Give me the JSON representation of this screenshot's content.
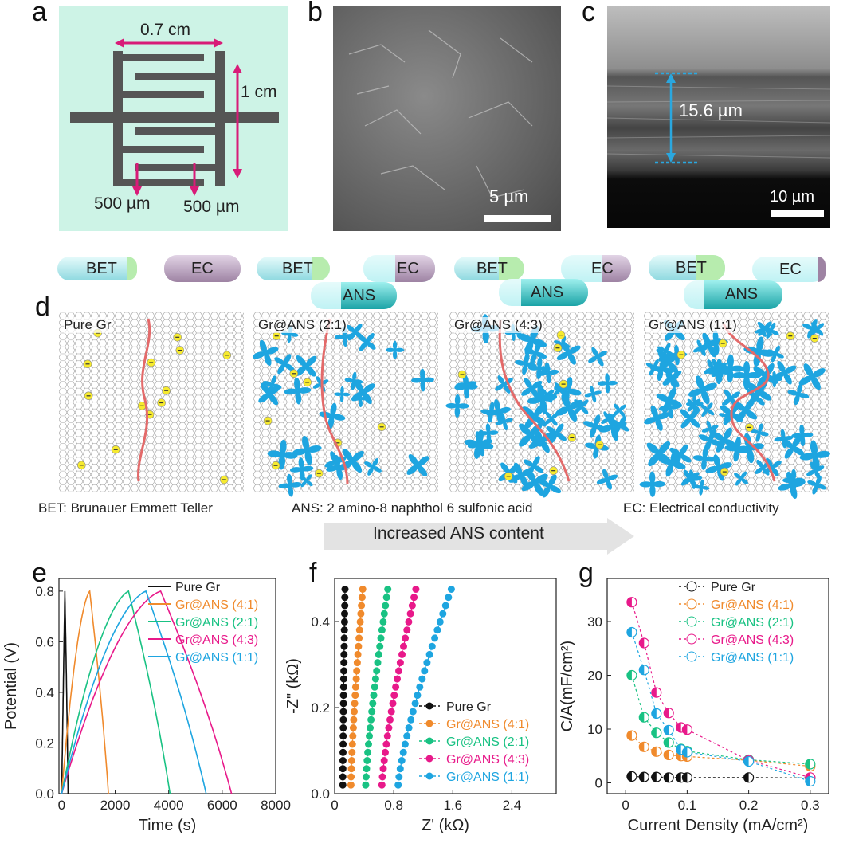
{
  "panels": {
    "a": "a",
    "b": "b",
    "c": "c",
    "d": "d",
    "e": "e",
    "f": "f",
    "g": "g"
  },
  "panel_a": {
    "width_label": "0.7 cm",
    "height_label": "1 cm",
    "gap_label_1": "500 µm",
    "gap_label_2": "500 µm"
  },
  "panel_b": {
    "scale_label": "5 µm"
  },
  "panel_c": {
    "thickness_label": "15.6 µm",
    "scale_label": "10 µm"
  },
  "panel_d": {
    "bars": [
      {
        "bet": "BET",
        "ec": "EC"
      },
      {
        "bet": "BET",
        "ec": "EC",
        "ans": "ANS"
      },
      {
        "bet": "BET",
        "ec": "EC",
        "ans": "ANS"
      },
      {
        "bet": "BET",
        "ec": "EC",
        "ans": "ANS"
      }
    ],
    "sheets": [
      "Pure Gr",
      "Gr@ANS (2:1)",
      "Gr@ANS (4:3)",
      "Gr@ANS (1:1)"
    ],
    "legend_bet": "BET: Brunauer Emmett Teller",
    "legend_ans": "ANS: 2 amino-8 naphthol 6 sulfonic acid",
    "legend_ec": "EC: Electrical conductivity",
    "arrow_label": "Increased ANS content"
  },
  "series_names": [
    "Pure Gr",
    "Gr@ANS (4:1)",
    "Gr@ANS (2:1)",
    "Gr@ANS (4:3)",
    "Gr@ANS (1:1)"
  ],
  "colors": [
    "#111111",
    "#f08a2c",
    "#19c283",
    "#e8198a",
    "#1ea5e0"
  ],
  "chart_data": [
    {
      "panel": "e",
      "type": "line",
      "title": "",
      "xlabel": "Time (s)",
      "ylabel": "Potential (V)",
      "xlim": [
        -100,
        8000
      ],
      "ylim": [
        0,
        0.85
      ],
      "xticks": [
        0,
        2000,
        4000,
        6000,
        8000
      ],
      "yticks": [
        0.0,
        0.2,
        0.4,
        0.6,
        0.8
      ],
      "series": [
        {
          "name": "Pure Gr",
          "charge_end": 120,
          "discharge_end": 240
        },
        {
          "name": "Gr@ANS (4:1)",
          "charge_end": 1050,
          "discharge_end": 1750
        },
        {
          "name": "Gr@ANS (2:1)",
          "charge_end": 2500,
          "discharge_end": 4050
        },
        {
          "name": "Gr@ANS (4:3)",
          "charge_end": 3700,
          "discharge_end": 6350
        },
        {
          "name": "Gr@ANS (1:1)",
          "charge_end": 3150,
          "discharge_end": 5400
        }
      ]
    },
    {
      "panel": "f",
      "type": "scatter",
      "title": "",
      "xlabel": "Z' (kΩ)",
      "ylabel": "-Z\" (kΩ)",
      "xlim": [
        0,
        3.0
      ],
      "ylim": [
        0,
        0.5
      ],
      "xticks": [
        0.0,
        0.8,
        1.6,
        2.4
      ],
      "yticks": [
        0.0,
        0.2,
        0.4
      ],
      "series": [
        {
          "name": "Pure Gr",
          "z_start": 0.11,
          "z_end": 0.14
        },
        {
          "name": "Gr@ANS (4:1)",
          "z_start": 0.22,
          "z_end": 0.38
        },
        {
          "name": "Gr@ANS (2:1)",
          "z_start": 0.42,
          "z_end": 0.72
        },
        {
          "name": "Gr@ANS (4:3)",
          "z_start": 0.64,
          "z_end": 1.1
        },
        {
          "name": "Gr@ANS (1:1)",
          "z_start": 0.86,
          "z_end": 1.58
        }
      ]
    },
    {
      "panel": "g",
      "type": "line",
      "title": "",
      "xlabel": "Current Density (mA/cm²)",
      "ylabel": "C/A(mF/cm²)",
      "xlim": [
        -0.03,
        0.33
      ],
      "ylim": [
        -2,
        38
      ],
      "xticks": [
        0.0,
        0.1,
        0.2,
        0.3
      ],
      "yticks": [
        0,
        10,
        20,
        30
      ],
      "x": [
        0.01,
        0.03,
        0.05,
        0.07,
        0.09,
        0.1,
        0.2,
        0.3
      ],
      "series": [
        {
          "name": "Pure Gr",
          "values": [
            1.2,
            1.1,
            1.1,
            1.0,
            1.0,
            1.0,
            1.0,
            0.9
          ]
        },
        {
          "name": "Gr@ANS (4:1)",
          "values": [
            8.8,
            6.7,
            5.8,
            5.2,
            5.0,
            4.9,
            4.2,
            3.1
          ]
        },
        {
          "name": "Gr@ANS (2:1)",
          "values": [
            20.0,
            12.2,
            9.3,
            7.5,
            6.3,
            5.9,
            4.3,
            3.5
          ]
        },
        {
          "name": "Gr@ANS (4:3)",
          "values": [
            33.6,
            26.0,
            16.8,
            13.0,
            10.3,
            9.9,
            4.2,
            1.0
          ]
        },
        {
          "name": "Gr@ANS (1:1)",
          "values": [
            28.0,
            21.0,
            12.9,
            9.8,
            6.2,
            5.7,
            4.0,
            0.3
          ]
        }
      ]
    }
  ]
}
